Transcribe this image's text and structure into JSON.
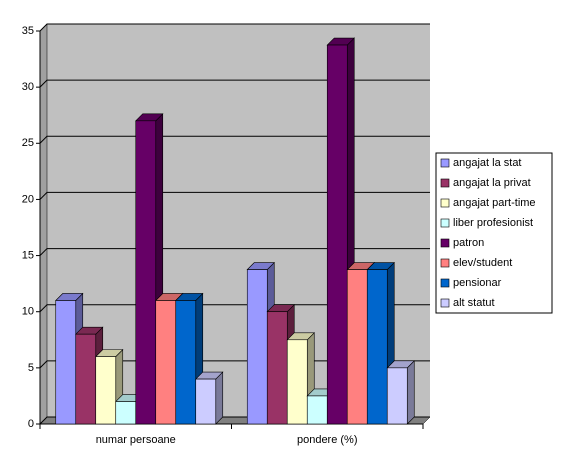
{
  "chart_data": {
    "type": "bar3d",
    "categories": [
      "numar persoane",
      "pondere  (%)"
    ],
    "series": [
      {
        "name": "angajat la stat",
        "color": "#9999ff",
        "values": [
          11,
          13.75
        ]
      },
      {
        "name": "angajat la privat",
        "color": "#993366",
        "values": [
          8,
          10
        ]
      },
      {
        "name": "angajat part-time",
        "color": "#ffffcc",
        "values": [
          6,
          7.5
        ]
      },
      {
        "name": "liber profesionist",
        "color": "#ccffff",
        "values": [
          2,
          2.5
        ]
      },
      {
        "name": "patron",
        "color": "#660066",
        "values": [
          27,
          33.75
        ]
      },
      {
        "name": "elev/student",
        "color": "#ff8080",
        "values": [
          11,
          13.75
        ]
      },
      {
        "name": "pensionar",
        "color": "#0066cc",
        "values": [
          11,
          13.75
        ]
      },
      {
        "name": "alt statut",
        "color": "#ccccff",
        "values": [
          4,
          5
        ]
      }
    ],
    "ylim": [
      0,
      35
    ],
    "yticks": [
      0,
      5,
      10,
      15,
      20,
      25,
      30,
      35
    ],
    "grid": true,
    "legend": "right"
  }
}
